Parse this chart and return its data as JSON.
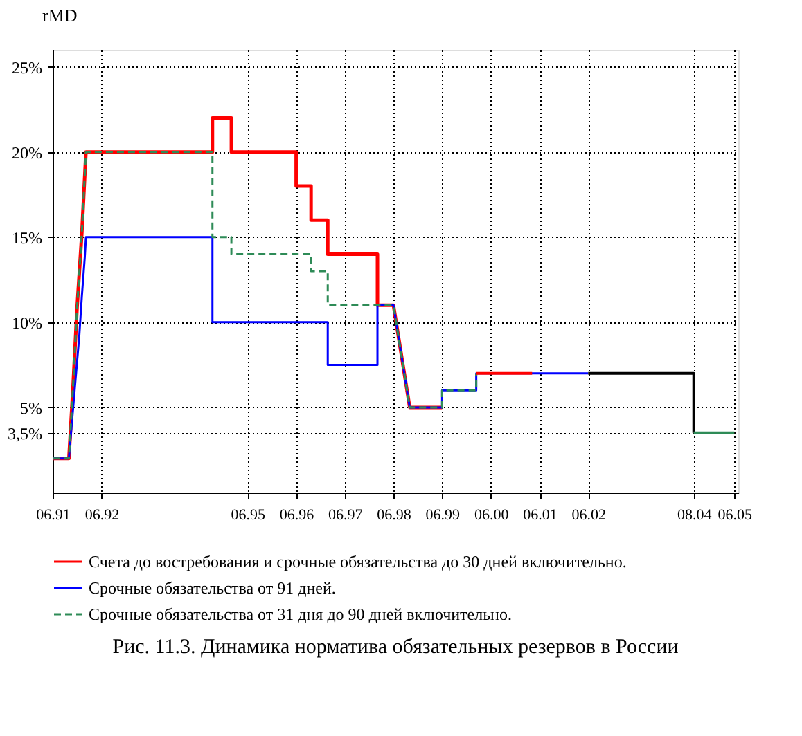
{
  "chart_data": {
    "type": "line",
    "title": "Рис. 11.3. Динамика норматива обязательных резервов в России",
    "ylabel": "rMD",
    "xlim": [
      "1991-06",
      "2005-07"
    ],
    "ylim": [
      0,
      26
    ],
    "xticks": [
      {
        "value": "1991-06",
        "label": "06.91"
      },
      {
        "value": "1992-06",
        "label": "06.92"
      },
      {
        "value": "1995-06",
        "label": "06.95"
      },
      {
        "value": "1996-06",
        "label": "06.96"
      },
      {
        "value": "1997-06",
        "label": "06.97"
      },
      {
        "value": "1998-06",
        "label": "06.98"
      },
      {
        "value": "1999-06",
        "label": "06.99"
      },
      {
        "value": "2000-06",
        "label": "06.00"
      },
      {
        "value": "2001-06",
        "label": "06.01"
      },
      {
        "value": "2002-06",
        "label": "06.02"
      },
      {
        "value": "2004-08",
        "label": "08.04"
      },
      {
        "value": "2005-06",
        "label": "06.05"
      }
    ],
    "yticks": [
      {
        "value": 3.5,
        "label": "3,5%"
      },
      {
        "value": 5,
        "label": "5%"
      },
      {
        "value": 10,
        "label": "10%"
      },
      {
        "value": 15,
        "label": "15%"
      },
      {
        "value": 20,
        "label": "20%"
      },
      {
        "value": 25,
        "label": "25%"
      }
    ],
    "grid": true,
    "legend": "bottom",
    "series": [
      {
        "name": "Счета до востребования и срочные обязательства до 30 дней включительно.",
        "color": "#ff0000",
        "line_style": "solid",
        "x": [
          "1991-06",
          "1991-10",
          "1991-11",
          "1991-12",
          "1992-01-06",
          "1992-02-06",
          "1994-09-12",
          "1994-09-12",
          "1995-02",
          "1995-02",
          "1996-06",
          "1996-06",
          "1996-09-21",
          "1996-09-21",
          "1997-01-24",
          "1997-01-24",
          "1998-02",
          "1998-02",
          "1998-06",
          "1998-10",
          "1999-06"
        ],
        "values": [
          2,
          2,
          6.2,
          10.8,
          15.2,
          20,
          20,
          22,
          22,
          20,
          20,
          18,
          18,
          16,
          16,
          14,
          14,
          11,
          11,
          5,
          5
        ]
      },
      {
        "name": "Срочные обязательства от 91 дней.",
        "color": "#0000ff",
        "line_style": "solid",
        "x": [
          "1991-06",
          "1991-10",
          "1991-11-15",
          "1991-12-18",
          "1992-01-06",
          "1992-01-28",
          "1992-02-06",
          "1994-09-12",
          "1994-09-12",
          "1997-01-24",
          "1997-01-24",
          "1998-02",
          "1998-02",
          "1998-06",
          "1998-10",
          "1999-06",
          "1999-06",
          "2000-02-12",
          "2000-02-12",
          "2002-06"
        ],
        "values": [
          2,
          2,
          6.2,
          9.2,
          11.5,
          13.8,
          15,
          15,
          10,
          10,
          7.5,
          7.5,
          11,
          11,
          5,
          5,
          6,
          6,
          7,
          7
        ]
      },
      {
        "name": "Срочные обязательства от 31 дня до 90 дней  включительно.",
        "color": "#2e8b57",
        "line_style": "dashed",
        "x": [
          "1991-06",
          "1991-10",
          "1991-11",
          "1991-12",
          "1992-01-06",
          "1992-02-06",
          "1994-09-12",
          "1994-09-12",
          "1995-02",
          "1995-02",
          "1996-09-21",
          "1996-09-21",
          "1997-01-24",
          "1997-01-24",
          "1998-06",
          "1998-10",
          "1999-06",
          "1999-06",
          "2000-02-12",
          "2000-02-12"
        ],
        "values": [
          2,
          2,
          6.2,
          10.8,
          15.2,
          20,
          20,
          15,
          15,
          14,
          14,
          13,
          13,
          11,
          11,
          5,
          5,
          6,
          6,
          7
        ]
      },
      {
        "color": "#ff0000",
        "line_style": "solid",
        "x": [
          "2000-02-12",
          "2001-04-06"
        ],
        "values": [
          7,
          7
        ]
      },
      {
        "color": "#000000",
        "line_style": "solid",
        "x": [
          "2002-06",
          "2004-08",
          "2004-08"
        ],
        "values": [
          7,
          7,
          3.5
        ]
      },
      {
        "color": "#2e8b57",
        "line_style": "solid",
        "x": [
          "2004-08",
          "2005-06"
        ],
        "values": [
          3.5,
          3.5
        ]
      }
    ]
  }
}
